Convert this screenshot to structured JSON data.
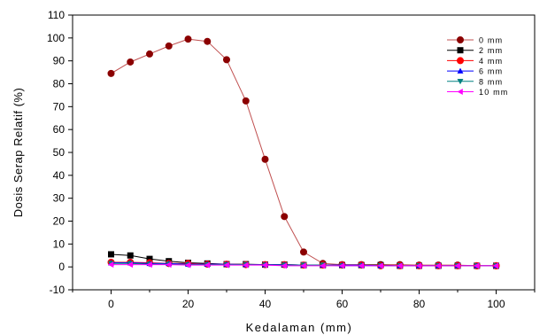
{
  "chart_data": {
    "type": "line",
    "xlabel": "Kedalaman (mm)",
    "ylabel": "Dosis Serap Relatif (%)",
    "xlim": [
      -10,
      110
    ],
    "ylim": [
      -10,
      110
    ],
    "xticks": [
      0,
      20,
      40,
      60,
      80,
      100
    ],
    "yticks": [
      -10,
      0,
      10,
      20,
      30,
      40,
      50,
      60,
      70,
      80,
      90,
      100,
      110
    ],
    "legend_position": "top-right",
    "x": [
      0,
      5,
      10,
      15,
      20,
      25,
      30,
      35,
      40,
      45,
      50,
      55,
      60,
      65,
      70,
      75,
      80,
      85,
      90,
      95,
      100
    ],
    "series": [
      {
        "name": "0 mm",
        "color": "#8b0000",
        "line_color": "#c05050",
        "marker": "circle",
        "values": [
          84.5,
          89.5,
          93,
          96.5,
          99.5,
          98.5,
          90.5,
          72.5,
          47,
          22,
          6.5,
          1.5,
          1,
          1,
          1,
          1,
          0.8,
          0.8,
          0.8,
          0.5,
          0.5
        ]
      },
      {
        "name": "2 mm",
        "color": "#000000",
        "line_color": "#000000",
        "marker": "square",
        "values": [
          5.5,
          5,
          3.5,
          2.5,
          1.8,
          1.5,
          1.2,
          1.2,
          1,
          1,
          0.8,
          0.8,
          0.8,
          0.8,
          0.8,
          0.5,
          0.5,
          0.5,
          0.5,
          0.5,
          0.5
        ]
      },
      {
        "name": "4 mm",
        "color": "#ff0000",
        "line_color": "#ff0000",
        "marker": "circle",
        "values": [
          2,
          2,
          1.8,
          1.5,
          1.5,
          1.2,
          1.2,
          1,
          1,
          1,
          0.8,
          0.8,
          0.8,
          0.8,
          0.5,
          0.5,
          0.5,
          0.5,
          0.5,
          0.5,
          0.5
        ]
      },
      {
        "name": "6 mm",
        "color": "#0000ff",
        "line_color": "#0000ff",
        "marker": "triangle-up",
        "values": [
          1.8,
          1.8,
          1.5,
          1.5,
          1.2,
          1.2,
          1.2,
          1,
          1,
          1,
          0.8,
          0.8,
          0.8,
          0.8,
          0.5,
          0.5,
          0.5,
          0.5,
          0.5,
          0.5,
          0.5
        ]
      },
      {
        "name": "8 mm",
        "color": "#008080",
        "line_color": "#008080",
        "marker": "triangle-down",
        "values": [
          1.5,
          1.5,
          1.2,
          1.2,
          1,
          1,
          1,
          1,
          0.8,
          0.8,
          0.8,
          0.8,
          0.5,
          0.5,
          0.5,
          0.5,
          0.5,
          0.5,
          0.5,
          0.5,
          0.5
        ]
      },
      {
        "name": "10 mm",
        "color": "#ff00ff",
        "line_color": "#ff00ff",
        "marker": "triangle-left",
        "values": [
          1,
          1,
          1,
          1,
          0.8,
          0.8,
          0.8,
          0.8,
          0.8,
          0.5,
          0.5,
          0.5,
          0.5,
          0.5,
          0.5,
          0.5,
          0.5,
          0.5,
          0.5,
          0.5,
          0.5
        ]
      }
    ]
  }
}
